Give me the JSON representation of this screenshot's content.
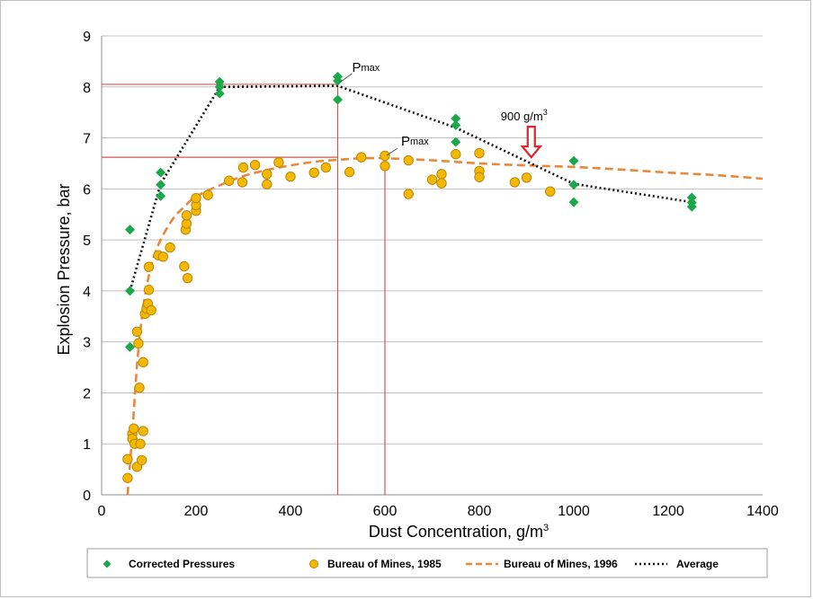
{
  "chart_data": {
    "type": "scatter",
    "title": "",
    "xlabel": "Dust Concentration, g/m",
    "xlabel_sup": "3",
    "ylabel": "Explosion Pressure, bar",
    "xlim": [
      0,
      1400
    ],
    "ylim": [
      0,
      9
    ],
    "x_ticks": [
      0,
      200,
      400,
      600,
      800,
      1000,
      1200,
      1400
    ],
    "y_ticks": [
      0,
      1,
      2,
      3,
      4,
      5,
      6,
      7,
      8,
      9
    ],
    "grid": "horizontal",
    "legend_position": "bottom",
    "colors": {
      "corrected": "#1aa84a",
      "bom1985_fill": "#f5b800",
      "bom1985_edge": "#b8860b",
      "bom1996": "#e8883a",
      "average": "#111111",
      "reference_lines": "#d9534f",
      "arrow": "#e2232a",
      "grid": "#bfbfbf"
    },
    "series": [
      {
        "name": "Corrected Pressures",
        "kind": "scatter",
        "marker": "diamond",
        "points": [
          [
            60,
            5.2
          ],
          [
            60,
            4.0
          ],
          [
            60,
            2.9
          ],
          [
            125,
            6.32
          ],
          [
            125,
            6.08
          ],
          [
            125,
            5.86
          ],
          [
            250,
            8.1
          ],
          [
            250,
            8.0
          ],
          [
            250,
            7.87
          ],
          [
            500,
            8.2
          ],
          [
            500,
            8.12
          ],
          [
            500,
            7.75
          ],
          [
            750,
            7.38
          ],
          [
            750,
            7.25
          ],
          [
            750,
            6.92
          ],
          [
            1000,
            6.55
          ],
          [
            1000,
            6.08
          ],
          [
            1000,
            5.74
          ],
          [
            1250,
            5.83
          ],
          [
            1250,
            5.73
          ],
          [
            1250,
            5.65
          ]
        ]
      },
      {
        "name": "Bureau of Mines, 1985",
        "kind": "scatter",
        "marker": "circle",
        "points": [
          [
            55,
            0.33
          ],
          [
            55,
            0.7
          ],
          [
            65,
            1.2
          ],
          [
            65,
            1.1
          ],
          [
            68,
            1.3
          ],
          [
            70,
            1.0
          ],
          [
            75,
            0.55
          ],
          [
            75,
            3.2
          ],
          [
            78,
            2.97
          ],
          [
            80,
            2.1
          ],
          [
            82,
            1.0
          ],
          [
            85,
            0.68
          ],
          [
            88,
            1.25
          ],
          [
            88,
            2.6
          ],
          [
            92,
            3.55
          ],
          [
            95,
            3.65
          ],
          [
            98,
            3.75
          ],
          [
            100,
            4.47
          ],
          [
            100,
            4.02
          ],
          [
            105,
            3.62
          ],
          [
            120,
            4.7
          ],
          [
            130,
            4.67
          ],
          [
            145,
            4.85
          ],
          [
            175,
            4.48
          ],
          [
            178,
            5.2
          ],
          [
            180,
            5.32
          ],
          [
            180,
            5.48
          ],
          [
            182,
            4.25
          ],
          [
            200,
            5.57
          ],
          [
            200,
            5.68
          ],
          [
            200,
            5.82
          ],
          [
            225,
            5.88
          ],
          [
            270,
            6.16
          ],
          [
            298,
            6.13
          ],
          [
            300,
            6.42
          ],
          [
            325,
            6.47
          ],
          [
            350,
            6.09
          ],
          [
            350,
            6.29
          ],
          [
            375,
            6.52
          ],
          [
            400,
            6.24
          ],
          [
            450,
            6.32
          ],
          [
            475,
            6.42
          ],
          [
            525,
            6.33
          ],
          [
            550,
            6.62
          ],
          [
            600,
            6.65
          ],
          [
            600,
            6.45
          ],
          [
            650,
            6.56
          ],
          [
            650,
            5.9
          ],
          [
            700,
            6.18
          ],
          [
            720,
            6.29
          ],
          [
            720,
            6.11
          ],
          [
            750,
            6.68
          ],
          [
            800,
            6.7
          ],
          [
            800,
            6.35
          ],
          [
            800,
            6.23
          ],
          [
            875,
            6.13
          ],
          [
            900,
            6.22
          ],
          [
            950,
            5.95
          ]
        ]
      },
      {
        "name": "Bureau of Mines, 1996",
        "kind": "line",
        "style": "dashed",
        "points": [
          [
            55,
            0.0
          ],
          [
            60,
            0.6
          ],
          [
            65,
            1.2
          ],
          [
            70,
            1.9
          ],
          [
            75,
            2.55
          ],
          [
            80,
            3.05
          ],
          [
            85,
            3.45
          ],
          [
            90,
            3.8
          ],
          [
            100,
            4.3
          ],
          [
            110,
            4.65
          ],
          [
            125,
            5.0
          ],
          [
            150,
            5.4
          ],
          [
            175,
            5.65
          ],
          [
            200,
            5.85
          ],
          [
            250,
            6.07
          ],
          [
            300,
            6.25
          ],
          [
            350,
            6.37
          ],
          [
            400,
            6.46
          ],
          [
            450,
            6.53
          ],
          [
            500,
            6.57
          ],
          [
            550,
            6.6
          ],
          [
            600,
            6.6
          ],
          [
            700,
            6.56
          ],
          [
            800,
            6.5
          ],
          [
            900,
            6.46
          ],
          [
            1000,
            6.43
          ],
          [
            1100,
            6.38
          ],
          [
            1200,
            6.32
          ],
          [
            1300,
            6.27
          ],
          [
            1400,
            6.2
          ]
        ]
      },
      {
        "name": "Average",
        "kind": "line",
        "style": "dotted",
        "points": [
          [
            60,
            4.0
          ],
          [
            125,
            6.1
          ],
          [
            250,
            8.0
          ],
          [
            500,
            8.02
          ],
          [
            750,
            7.2
          ],
          [
            1000,
            6.1
          ],
          [
            1250,
            5.74
          ]
        ]
      }
    ],
    "reference_lines": {
      "h": [
        8.05,
        6.62
      ],
      "v": [
        {
          "x": 500,
          "y_top": 8.05
        },
        {
          "x": 600,
          "y_top": 6.62
        }
      ]
    },
    "annotations": [
      {
        "text": "P",
        "sub": "max",
        "x": 500,
        "y": 8.05
      },
      {
        "text": "P",
        "sub": "max",
        "x": 600,
        "y": 6.62
      },
      {
        "text": "900 g/m",
        "sup": "3",
        "x": 910,
        "y": 6.55
      }
    ]
  }
}
